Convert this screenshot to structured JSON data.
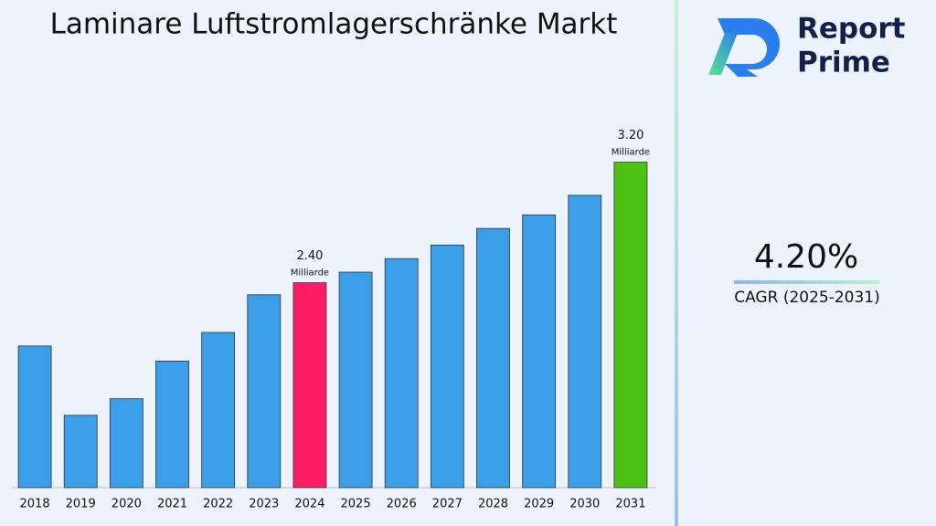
{
  "chart_data": {
    "type": "bar",
    "title": "Laminare Luftstromlagerschränke Markt",
    "categories": [
      "2018",
      "2019",
      "2020",
      "2021",
      "2022",
      "2023",
      "2024",
      "2025",
      "2026",
      "2027",
      "2028",
      "2029",
      "2030",
      "2031"
    ],
    "values": [
      1.98,
      1.52,
      1.63,
      1.88,
      2.07,
      2.32,
      2.4,
      2.47,
      2.56,
      2.65,
      2.76,
      2.85,
      2.98,
      3.2
    ],
    "value_labels": [
      null,
      null,
      null,
      null,
      null,
      null,
      "2.40",
      null,
      null,
      null,
      null,
      null,
      null,
      "3.20"
    ],
    "value_unit": "Milliarde",
    "colors": [
      "#3a9fe8",
      "#3a9fe8",
      "#3a9fe8",
      "#3a9fe8",
      "#3a9fe8",
      "#3a9fe8",
      "#fc1c64",
      "#3a9fe8",
      "#3a9fe8",
      "#3a9fe8",
      "#3a9fe8",
      "#3a9fe8",
      "#3a9fe8",
      "#4cc212"
    ],
    "ylim": [
      1.04,
      3.67
    ]
  },
  "cagr": {
    "value": "4.20%",
    "label": "CAGR (2025-2031)"
  },
  "logo": {
    "line1": "Report",
    "line2": "Prime"
  }
}
